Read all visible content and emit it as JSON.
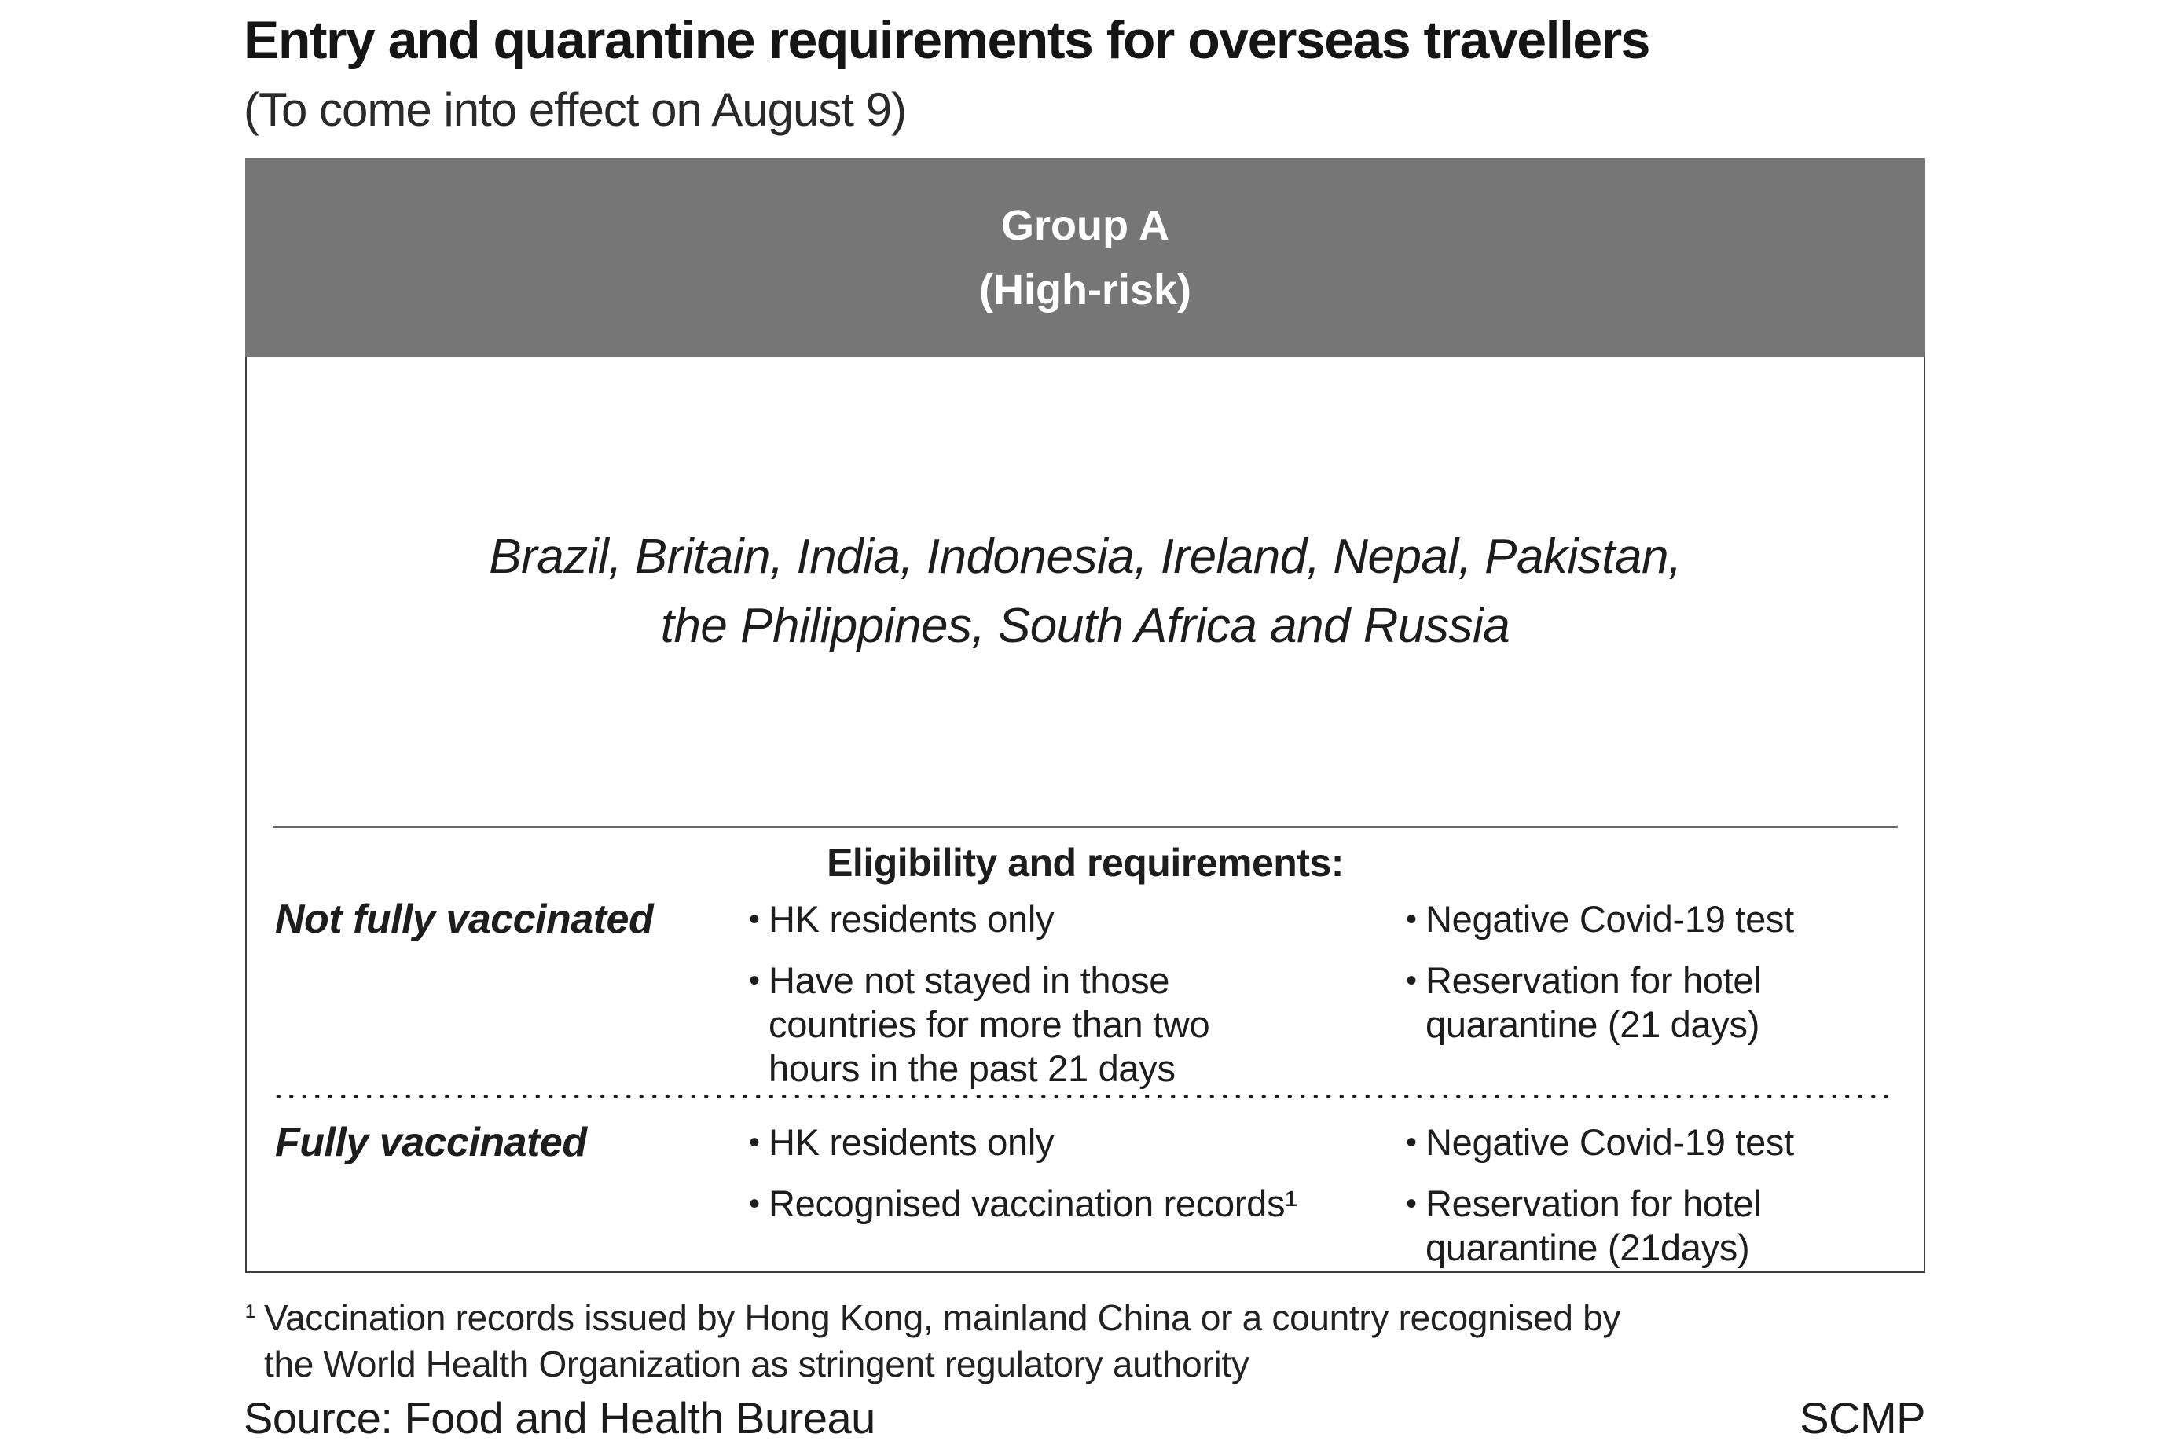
{
  "page": {
    "title": "Entry and quarantine requirements for overseas travellers",
    "subtitle": "(To come into effect on August 9)"
  },
  "chart_data": {
    "type": "table",
    "title": "Entry and quarantine requirements for overseas travellers",
    "subtitle": "(To come into effect on August 9)",
    "group": "Group A (High-risk)",
    "countries": [
      "Brazil",
      "Britain",
      "India",
      "Indonesia",
      "Ireland",
      "Nepal",
      "Pakistan",
      "the Philippines",
      "South Africa",
      "Russia"
    ],
    "section": "Eligibility and requirements:",
    "rows": [
      {
        "label": "Not fully vaccinated",
        "eligibility": [
          "HK residents only",
          "Have not stayed in those countries for more than two hours in the past 21 days"
        ],
        "requirements": [
          "Negative Covid-19 test",
          "Reservation for hotel quarantine (21 days)"
        ]
      },
      {
        "label": "Fully vaccinated",
        "eligibility": [
          "HK residents only",
          "Recognised vaccination records¹"
        ],
        "requirements": [
          "Negative Covid-19 test",
          "Reservation for hotel quarantine (21days)"
        ]
      }
    ]
  },
  "table": {
    "group_header": {
      "name": "Group A",
      "risk": "(High-risk)"
    },
    "countries": {
      "line1": "Brazil, Britain, India, Indonesia, Ireland, Nepal, Pakistan,",
      "line2": "the Philippines, South Africa and Russia"
    },
    "section_heading": "Eligibility and requirements:",
    "rows": [
      {
        "label": "Not fully vaccinated",
        "eligibility": [
          "HK residents only",
          "Have not stayed in those countries for more than two hours in the past 21 days"
        ],
        "requirements": [
          "Negative Covid-19 test",
          "Reservation for hotel quarantine (21 days)"
        ]
      },
      {
        "label": "Fully vaccinated",
        "eligibility": [
          "HK residents only",
          "Recognised vaccination records¹"
        ],
        "requirements": [
          "Negative Covid-19 test",
          "Reservation for hotel quarantine (21days)"
        ]
      }
    ]
  },
  "footnote": {
    "marker": "¹",
    "line1": "Vaccination records issued by Hong Kong, mainland China or a country recognised by",
    "line2": "the World Health Organization as stringent regulatory authority"
  },
  "source": {
    "label": "Source: Food and Health Bureau",
    "credit": "SCMP"
  },
  "glyphs": {
    "bullet": "•"
  },
  "colors": {
    "header_bg": "#767676",
    "header_text": "#ffffff",
    "text": "#1d1d1d",
    "border": "#3e3e3e",
    "rule": "#6b6b6b",
    "dot": "#1a1a1a"
  }
}
